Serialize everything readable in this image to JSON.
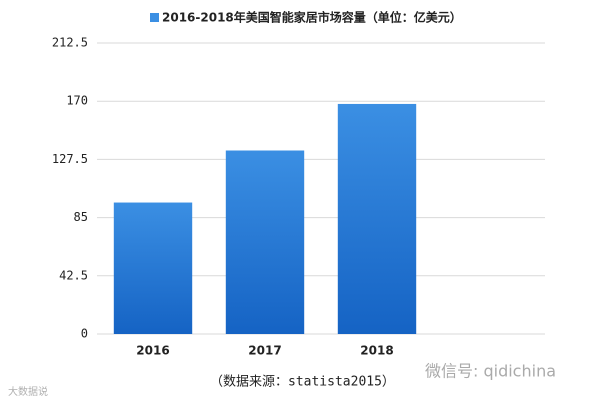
{
  "chart_data": {
    "type": "bar",
    "title": "2016-2018年美国智能家居市场容量（单位：亿美元）",
    "categories": [
      "2016",
      "2017",
      "2018",
      null
    ],
    "series": [
      {
        "name": "2016-2018年美国智能家居市场容量（单位：亿美元）",
        "color": "#3b8fe3",
        "values": [
          96,
          134,
          168,
          null
        ]
      }
    ],
    "ylim": [
      0,
      212.5
    ],
    "yticks": [
      0,
      42.5,
      85,
      127.5,
      170,
      212.5
    ],
    "grid": true,
    "legend": "top",
    "source": "（数据来源：statista2015）",
    "watermark_left": "大数据说",
    "watermark_right": "微信号: qidichina"
  }
}
